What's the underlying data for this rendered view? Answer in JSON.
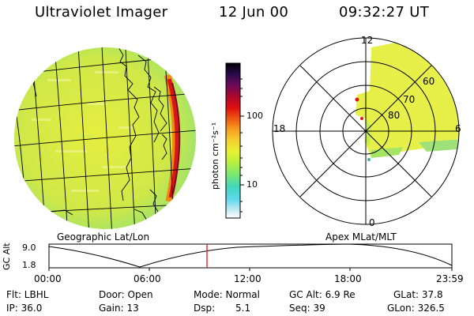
{
  "header": {
    "title": "Ultraviolet Imager",
    "date": "12 Jun 00",
    "time": "09:32:27 UT"
  },
  "globe": {
    "caption": "Geographic Lat/Lon"
  },
  "polar": {
    "caption": "Apex MLat/MLT",
    "mlt_labels": {
      "top": "12",
      "left": "18",
      "right": "6",
      "bottom": "0"
    },
    "lat_labels": [
      "60",
      "70",
      "80"
    ]
  },
  "colorbar": {
    "unit_label": "photon cm⁻²s⁻¹",
    "ticks": [
      "100",
      "10"
    ],
    "colors": [
      "#000000",
      "#2a0a4a",
      "#6a0a5a",
      "#b0082a",
      "#e01010",
      "#f05a10",
      "#f5a020",
      "#f5d030",
      "#e8f030",
      "#b8f040",
      "#7ae870",
      "#40d8c0",
      "#60d8f0",
      "#b8e8f0",
      "#ffffff"
    ]
  },
  "altitude_plot": {
    "ylabel": "GC Alt",
    "yticks": [
      "9.0",
      "1.8"
    ],
    "xticks": [
      "00:00",
      "06:00",
      "12:00",
      "18:00",
      "23:59"
    ],
    "marker_color": "#ee2020"
  },
  "footer": {
    "flt": "Flt: LBHL",
    "door": "Door: Open",
    "mode": "Mode: Normal",
    "gc_alt": "GC Alt: 6.9 Re",
    "glat": "GLat: 37.8",
    "ip": "IP: 36.0",
    "gain": "Gain: 13",
    "dsp_label": "Dsp:",
    "dsp_value": "5.1",
    "seq": "Seq: 39",
    "glon": "GLon: 326.5"
  },
  "colors": {
    "aurora_yellow": "#e6f048",
    "aurora_green": "#b8ec50",
    "limb_red": "#d81818"
  }
}
